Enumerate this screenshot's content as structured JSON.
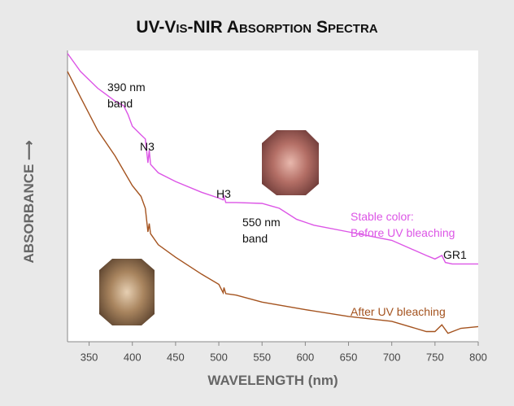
{
  "chart_data": {
    "type": "line",
    "title": "UV-Vis-NIR Absorption Spectra",
    "xlabel": "WAVELENGTH (nm)",
    "ylabel": "ABSORBANCE ⟶",
    "xlim": [
      325,
      800
    ],
    "xticks": [
      350,
      400,
      450,
      500,
      550,
      600,
      650,
      700,
      750,
      800
    ],
    "ylim": [
      0,
      100
    ],
    "series": [
      {
        "name": "Stable color:\nBefore UV bleaching",
        "color": "#dc55e6",
        "x": [
          325,
          340,
          360,
          380,
          390,
          395,
          400,
          410,
          415,
          418,
          419.5,
          421,
          430,
          450,
          480,
          500,
          505,
          506,
          508,
          520,
          550,
          570,
          590,
          610,
          650,
          700,
          740,
          750,
          758,
          762,
          770,
          800
        ],
        "values": [
          99,
          92.8,
          87,
          82.6,
          81,
          78,
          74,
          71,
          69.6,
          61.4,
          65.8,
          60.9,
          58,
          55,
          51.3,
          49.3,
          48.7,
          49.9,
          47.8,
          47.8,
          47.5,
          45.8,
          42,
          40,
          37.7,
          34.8,
          29.6,
          28.4,
          29.6,
          27.2,
          26.7,
          26.7
        ]
      },
      {
        "name": "After UV bleaching",
        "color": "#a4531f",
        "x": [
          325,
          340,
          360,
          380,
          400,
          410,
          415,
          418,
          419.5,
          421,
          430,
          450,
          480,
          500,
          505,
          506,
          508,
          520,
          550,
          600,
          650,
          700,
          740,
          750,
          758,
          765,
          780,
          800
        ],
        "values": [
          92.8,
          84,
          72.5,
          63.8,
          53.6,
          49.9,
          45.8,
          37.7,
          40.6,
          37.1,
          33.3,
          29,
          23.2,
          19.7,
          16.8,
          18.6,
          16.5,
          16,
          13.6,
          11,
          8.7,
          7,
          3.5,
          3.5,
          5.8,
          2.9,
          4.6,
          5.2
        ]
      }
    ],
    "annotations": [
      "390 nm\nband",
      "N3",
      "H3",
      "550 nm\nband",
      "GR1"
    ]
  }
}
